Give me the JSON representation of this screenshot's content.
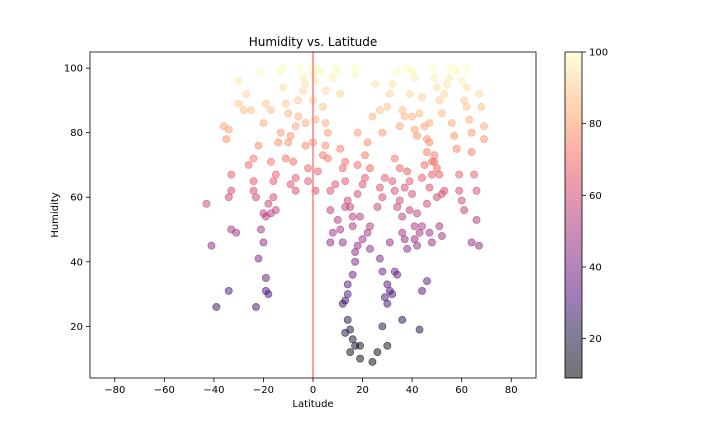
{
  "chart_data": {
    "type": "scatter",
    "title": "Humidity vs. Latitude",
    "xlabel": "Latitude",
    "ylabel": "Humidity",
    "xlim": [
      -90,
      90
    ],
    "ylim": [
      4,
      105
    ],
    "xticks": [
      "−80",
      "−60",
      "−40",
      "−20",
      "0",
      "20",
      "40",
      "60",
      "80"
    ],
    "yticks": [
      "20",
      "40",
      "60",
      "80",
      "100"
    ],
    "grid": false,
    "colormap": "magma",
    "marker_alpha": 0.5,
    "colorbar": {
      "range": [
        9,
        100
      ],
      "ticks": [
        "20",
        "40",
        "60",
        "80",
        "100"
      ]
    },
    "reference_line": {
      "x": 0,
      "color": "#ff7f7f"
    },
    "points": [
      [
        -43,
        58
      ],
      [
        -41,
        45
      ],
      [
        -39,
        26
      ],
      [
        -36,
        82
      ],
      [
        -35,
        78
      ],
      [
        -34,
        81
      ],
      [
        -34,
        60
      ],
      [
        -33,
        67
      ],
      [
        -33,
        62
      ],
      [
        -34,
        31
      ],
      [
        -33,
        50
      ],
      [
        -31,
        49
      ],
      [
        -30,
        89
      ],
      [
        -30,
        96
      ],
      [
        -28,
        87
      ],
      [
        -27,
        92
      ],
      [
        -25,
        87
      ],
      [
        -26,
        70
      ],
      [
        -24,
        72
      ],
      [
        -23,
        60
      ],
      [
        -23,
        26
      ],
      [
        -21,
        99
      ],
      [
        -20,
        55
      ],
      [
        -19,
        35
      ],
      [
        -19,
        31
      ],
      [
        -18,
        30
      ],
      [
        -20,
        46
      ],
      [
        -21,
        50
      ],
      [
        -22,
        41
      ],
      [
        -24,
        65
      ],
      [
        -24,
        62
      ],
      [
        -22,
        76
      ],
      [
        -20,
        83
      ],
      [
        -19,
        89
      ],
      [
        -17,
        87
      ],
      [
        -17,
        71
      ],
      [
        -16,
        65
      ],
      [
        -17,
        55
      ],
      [
        -15,
        56
      ],
      [
        -13,
        99
      ],
      [
        -12,
        100
      ],
      [
        -12,
        94
      ],
      [
        -11,
        89
      ],
      [
        -10,
        86
      ],
      [
        -10,
        77
      ],
      [
        -9,
        79
      ],
      [
        -8,
        71
      ],
      [
        -7,
        66
      ],
      [
        -7,
        62
      ],
      [
        -6,
        85
      ],
      [
        -5,
        100
      ],
      [
        -4,
        97
      ],
      [
        -4,
        93
      ],
      [
        -3,
        83
      ],
      [
        -3,
        76
      ],
      [
        -2,
        69
      ],
      [
        -2,
        65
      ],
      [
        -1,
        100
      ],
      [
        0,
        98
      ],
      [
        1,
        96
      ],
      [
        0,
        90
      ],
      [
        1,
        84
      ],
      [
        0,
        77
      ],
      [
        1,
        62
      ],
      [
        2,
        100
      ],
      [
        3,
        99
      ],
      [
        4,
        88
      ],
      [
        5,
        93
      ],
      [
        5,
        83
      ],
      [
        5,
        76
      ],
      [
        6,
        72
      ],
      [
        7,
        62
      ],
      [
        7,
        56
      ],
      [
        8,
        49
      ],
      [
        7,
        46
      ],
      [
        8,
        97
      ],
      [
        9,
        100
      ],
      [
        10,
        99
      ],
      [
        11,
        92
      ],
      [
        11,
        75
      ],
      [
        12,
        69
      ],
      [
        13,
        71
      ],
      [
        13,
        65
      ],
      [
        13,
        57
      ],
      [
        14,
        59
      ],
      [
        15,
        57
      ],
      [
        16,
        54
      ],
      [
        16,
        51
      ],
      [
        17,
        100
      ],
      [
        17,
        98
      ],
      [
        18,
        80
      ],
      [
        18,
        70
      ],
      [
        19,
        54
      ],
      [
        20,
        47
      ],
      [
        18,
        45
      ],
      [
        17,
        43
      ],
      [
        17,
        40
      ],
      [
        16,
        36
      ],
      [
        14,
        33
      ],
      [
        14,
        30
      ],
      [
        13,
        28
      ],
      [
        12,
        27
      ],
      [
        13,
        18
      ],
      [
        14,
        22
      ],
      [
        15,
        19
      ],
      [
        16,
        16
      ],
      [
        15,
        12
      ],
      [
        17,
        14
      ],
      [
        19,
        14
      ],
      [
        19,
        10
      ],
      [
        22,
        49
      ],
      [
        23,
        44
      ],
      [
        23,
        51
      ],
      [
        24,
        9
      ],
      [
        26,
        12
      ],
      [
        27,
        41
      ],
      [
        28,
        37
      ],
      [
        28,
        20
      ],
      [
        29,
        29
      ],
      [
        30,
        33
      ],
      [
        30,
        27
      ],
      [
        30,
        14
      ],
      [
        31,
        31
      ],
      [
        32,
        30
      ],
      [
        33,
        37
      ],
      [
        34,
        36
      ],
      [
        31,
        46
      ],
      [
        32,
        65
      ],
      [
        33,
        62
      ],
      [
        34,
        57
      ],
      [
        35,
        59
      ],
      [
        36,
        54
      ],
      [
        36,
        49
      ],
      [
        37,
        47
      ],
      [
        38,
        44
      ],
      [
        36,
        22
      ],
      [
        38,
        68
      ],
      [
        39,
        65
      ],
      [
        40,
        61
      ],
      [
        41,
        51
      ],
      [
        41,
        47
      ],
      [
        42,
        45
      ],
      [
        43,
        19
      ],
      [
        44,
        31
      ],
      [
        46,
        34
      ],
      [
        44,
        66
      ],
      [
        45,
        70
      ],
      [
        46,
        74
      ],
      [
        47,
        77
      ],
      [
        48,
        71
      ],
      [
        49,
        73
      ],
      [
        50,
        69
      ],
      [
        51,
        67
      ],
      [
        52,
        61
      ],
      [
        51,
        51
      ],
      [
        52,
        48
      ],
      [
        53,
        62
      ],
      [
        53,
        92
      ],
      [
        54,
        95
      ],
      [
        55,
        97
      ],
      [
        56,
        83
      ],
      [
        57,
        79
      ],
      [
        58,
        75
      ],
      [
        59,
        67
      ],
      [
        59,
        62
      ],
      [
        60,
        59
      ],
      [
        61,
        56
      ],
      [
        62,
        100
      ],
      [
        62,
        94
      ],
      [
        62,
        88
      ],
      [
        63,
        84
      ],
      [
        64,
        80
      ],
      [
        64,
        74
      ],
      [
        65,
        67
      ],
      [
        66,
        62
      ],
      [
        66,
        53
      ],
      [
        64,
        46
      ],
      [
        67,
        45
      ],
      [
        67,
        92
      ],
      [
        68,
        88
      ],
      [
        69,
        82
      ],
      [
        69,
        78
      ],
      [
        30,
        88
      ],
      [
        28,
        80
      ],
      [
        27,
        87
      ],
      [
        25,
        95
      ],
      [
        24,
        85
      ],
      [
        22,
        77
      ],
      [
        21,
        73
      ],
      [
        20,
        64
      ],
      [
        18,
        61
      ],
      [
        35,
        82
      ],
      [
        36,
        87
      ],
      [
        37,
        85
      ],
      [
        39,
        92
      ],
      [
        40,
        85
      ],
      [
        41,
        81
      ],
      [
        42,
        79
      ],
      [
        43,
        86
      ],
      [
        44,
        91
      ],
      [
        45,
        82
      ],
      [
        46,
        78
      ],
      [
        47,
        83
      ],
      [
        48,
        100
      ],
      [
        49,
        97
      ],
      [
        50,
        94
      ],
      [
        51,
        90
      ],
      [
        52,
        86
      ],
      [
        55,
        100
      ],
      [
        57,
        100
      ],
      [
        58,
        99
      ],
      [
        60,
        96
      ],
      [
        61,
        90
      ],
      [
        38,
        100
      ],
      [
        40,
        99
      ],
      [
        41,
        97
      ],
      [
        34,
        99
      ],
      [
        32,
        95
      ],
      [
        31,
        92
      ],
      [
        -14,
        77
      ],
      [
        -15,
        67
      ],
      [
        -16,
        60
      ],
      [
        -18,
        58
      ],
      [
        -19,
        54
      ],
      [
        -9,
        64
      ],
      [
        -11,
        72
      ],
      [
        -13,
        80
      ],
      [
        -7,
        82
      ],
      [
        -6,
        90
      ],
      [
        -3,
        95
      ],
      [
        2,
        68
      ],
      [
        4,
        73
      ],
      [
        6,
        80
      ],
      [
        9,
        64
      ],
      [
        10,
        53
      ],
      [
        11,
        50
      ],
      [
        12,
        46
      ],
      [
        33,
        72
      ],
      [
        35,
        69
      ],
      [
        37,
        63
      ],
      [
        39,
        56
      ],
      [
        42,
        55
      ],
      [
        43,
        49
      ],
      [
        44,
        51
      ],
      [
        46,
        58
      ],
      [
        47,
        63
      ],
      [
        48,
        67
      ],
      [
        49,
        71
      ],
      [
        50,
        60
      ],
      [
        47,
        49
      ],
      [
        48,
        46
      ],
      [
        26,
        57
      ],
      [
        27,
        63
      ],
      [
        28,
        60
      ],
      [
        29,
        66
      ],
      [
        23,
        69
      ],
      [
        21,
        66
      ]
    ]
  }
}
